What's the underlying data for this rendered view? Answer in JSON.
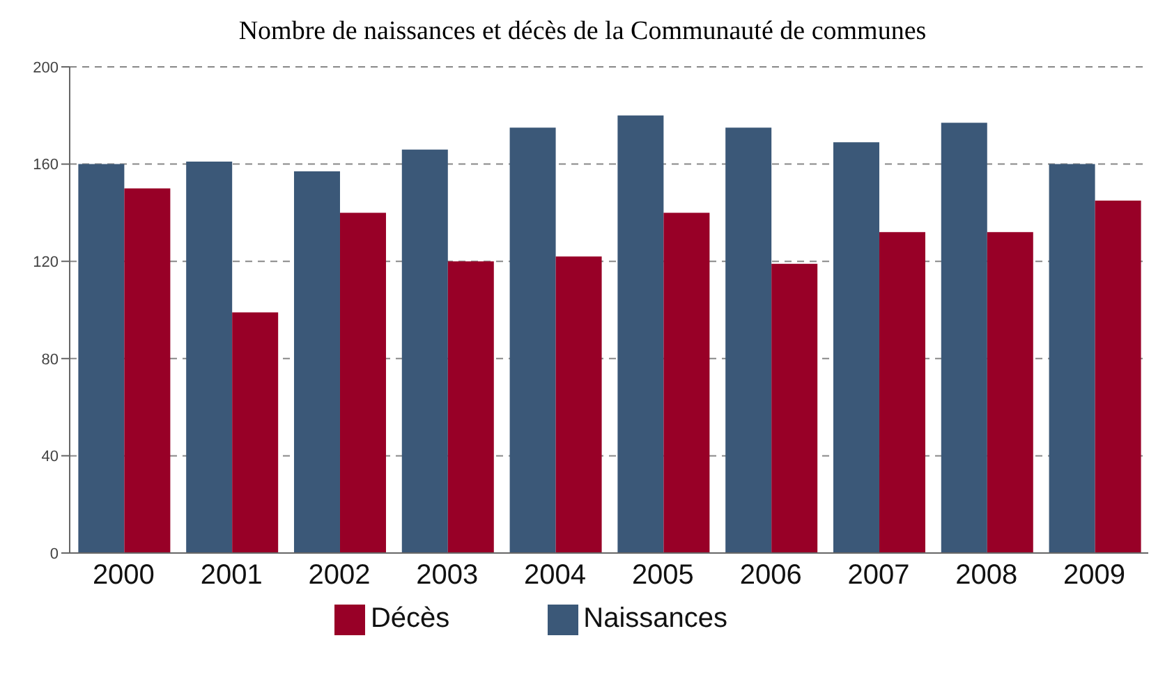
{
  "chart_data": {
    "type": "bar",
    "title": "Nombre de naissances et décès de la Communauté de communes",
    "categories": [
      "2000",
      "2001",
      "2002",
      "2003",
      "2004",
      "2005",
      "2006",
      "2007",
      "2008",
      "2009"
    ],
    "series": [
      {
        "name": "Naissances",
        "color": "#3b5878",
        "values": [
          160,
          161,
          157,
          166,
          175,
          180,
          175,
          169,
          177,
          160
        ]
      },
      {
        "name": "Décès",
        "color": "#980027",
        "values": [
          150,
          99,
          140,
          120,
          122,
          140,
          119,
          132,
          132,
          145
        ]
      }
    ],
    "ylim": [
      0,
      200
    ],
    "yticks": [
      0,
      40,
      80,
      120,
      160,
      200
    ],
    "grid": "y",
    "legend": "bottom"
  }
}
